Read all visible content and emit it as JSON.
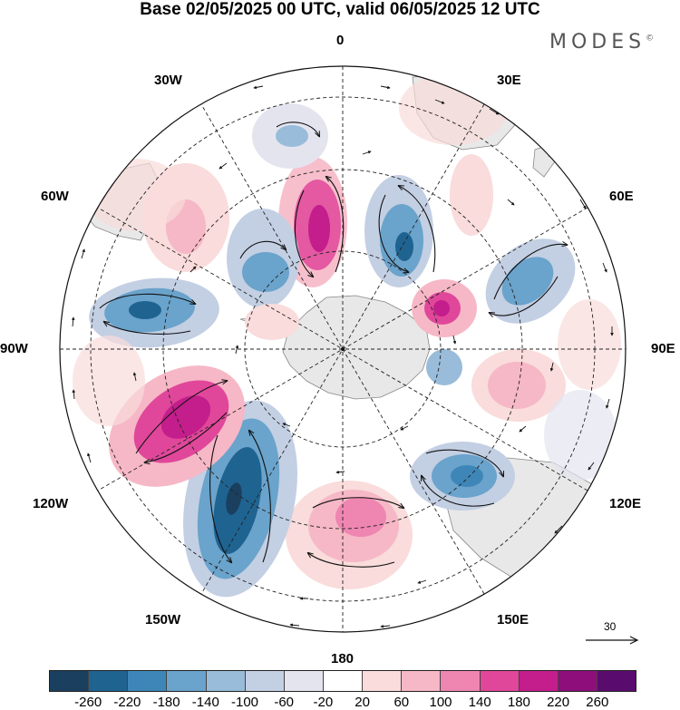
{
  "title": "Base 02/05/2025 00 UTC, valid 06/05/2025 12 UTC",
  "brand": "MODES",
  "brand_mark": "©",
  "longitude_labels": {
    "lon_0": "0",
    "lon_30e": "30E",
    "lon_60e": "60E",
    "lon_90e": "90E",
    "lon_120e": "120E",
    "lon_150e": "150E",
    "lon_180": "180",
    "lon_150w": "150W",
    "lon_120w": "120W",
    "lon_90w": "90W",
    "lon_60w": "60W",
    "lon_30w": "30W"
  },
  "reference_vector": {
    "value": "30"
  },
  "colorbar": {
    "colors": [
      "#1a3f5f",
      "#1f6391",
      "#3f86b8",
      "#6aa3cb",
      "#98bcd9",
      "#c3cfe3",
      "#e4e4ef",
      "#ffffff",
      "#f9dcdb",
      "#f6b8c6",
      "#ee86b1",
      "#e0479a",
      "#c31e8b",
      "#8e0e7c",
      "#5a0b6e"
    ],
    "tick_labels": [
      "-260",
      "-220",
      "-180",
      "-140",
      "-100",
      "-60",
      "-20",
      "20",
      "60",
      "100",
      "140",
      "180",
      "220",
      "260"
    ]
  }
}
